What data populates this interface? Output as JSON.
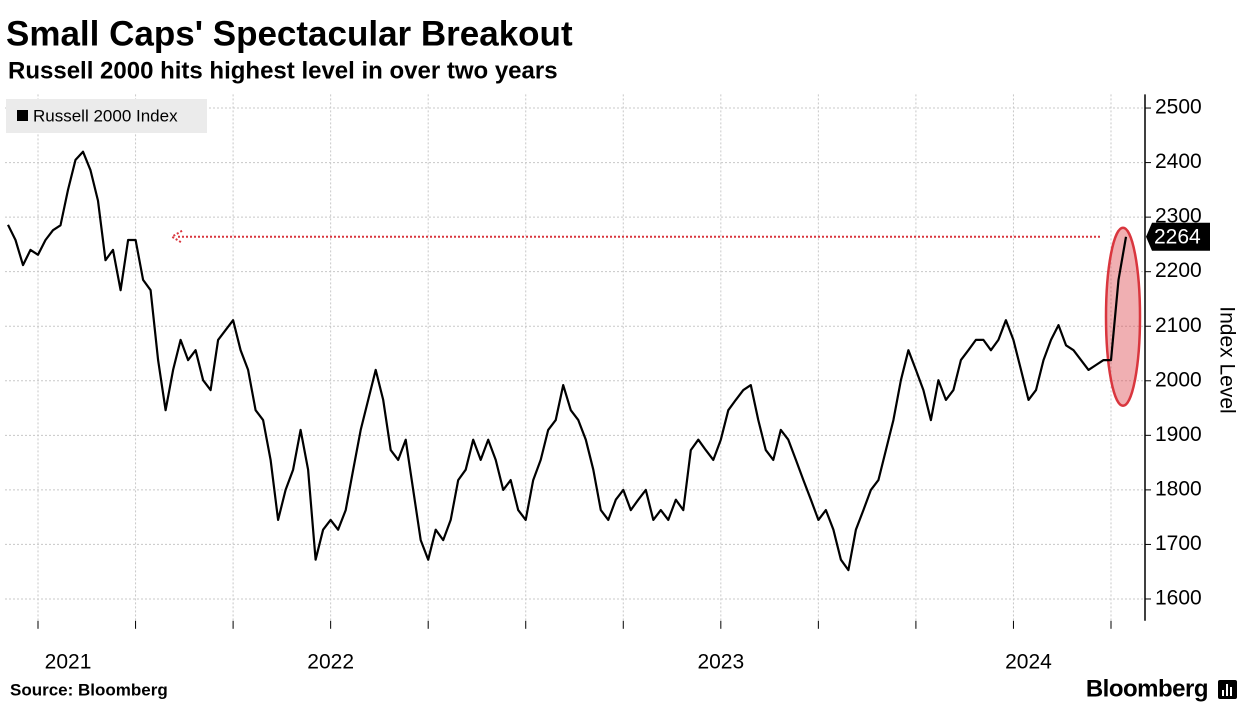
{
  "chart_data": {
    "type": "line",
    "title": "Small Caps' Spectacular Breakout",
    "subtitle": "Russell 2000 hits highest level in over two years",
    "y_axis_label": "Index Level",
    "source": "Source: Bloomberg",
    "brand": "Bloomberg",
    "categories": [
      null,
      null,
      null,
      null,
      null,
      null,
      null,
      null,
      "2021",
      null,
      null,
      null,
      null,
      null,
      null,
      null,
      null,
      null,
      null,
      null,
      null,
      null,
      null,
      null,
      null,
      null,
      null,
      null,
      null,
      null,
      null,
      null,
      null,
      null,
      null,
      null,
      null,
      null,
      null,
      null,
      null,
      null,
      null,
      "2022",
      null,
      null,
      null,
      null,
      null,
      null,
      null,
      null,
      null,
      null,
      null,
      null,
      null,
      null,
      null,
      null,
      null,
      null,
      null,
      null,
      null,
      null,
      null,
      null,
      null,
      null,
      null,
      null,
      null,
      null,
      null,
      null,
      null,
      null,
      null,
      null,
      null,
      null,
      null,
      null,
      null,
      null,
      null,
      null,
      null,
      null,
      null,
      null,
      null,
      null,
      null,
      "2023",
      null,
      null,
      null,
      null,
      null,
      null,
      null,
      null,
      null,
      null,
      null,
      null,
      null,
      null,
      null,
      null,
      null,
      null,
      null,
      null,
      null,
      null,
      null,
      null,
      null,
      null,
      null,
      null,
      null,
      null,
      null,
      null,
      null,
      null,
      null,
      null,
      null,
      null,
      null,
      null,
      "2024",
      null,
      null,
      null,
      null,
      null,
      null,
      null,
      null,
      null,
      null,
      null,
      null,
      null
    ],
    "series": [
      {
        "name": "Russell 2000 Index",
        "color": "#000000",
        "values": [
          2286,
          2258,
          2212,
          2240,
          2231,
          2258,
          2276,
          2285,
          2350,
          2405,
          2420,
          2386,
          2330,
          2221,
          2240,
          2166,
          2258,
          2258,
          2185,
          2166,
          2038,
          1946,
          2020,
          2075,
          2038,
          2056,
          2001,
          1983,
          2075,
          2093,
          2111,
          2056,
          2020,
          1946,
          1928,
          1855,
          1745,
          1800,
          1837,
          1910,
          1837,
          1672,
          1727,
          1745,
          1727,
          1763,
          1837,
          1910,
          1965,
          2020,
          1965,
          1873,
          1855,
          1892,
          1800,
          1708,
          1672,
          1727,
          1708,
          1745,
          1818,
          1837,
          1892,
          1855,
          1892,
          1855,
          1800,
          1818,
          1763,
          1745,
          1818,
          1855,
          1910,
          1928,
          1992,
          1946,
          1928,
          1892,
          1837,
          1763,
          1745,
          1782,
          1800,
          1763,
          1782,
          1800,
          1745,
          1763,
          1745,
          1782,
          1763,
          1873,
          1892,
          1873,
          1855,
          1892,
          1946,
          1965,
          1983,
          1992,
          1928,
          1873,
          1855,
          1910,
          1892,
          1855,
          1818,
          1782,
          1745,
          1763,
          1727,
          1672,
          1653,
          1727,
          1763,
          1800,
          1818,
          1873,
          1928,
          2001,
          2056,
          2020,
          1983,
          1928,
          2001,
          1965,
          1983,
          2038,
          2056,
          2075,
          2075,
          2056,
          2075,
          2111,
          2075,
          2020,
          1965,
          1983,
          2038,
          2075,
          2102,
          2065,
          2056,
          2038,
          2020,
          2029,
          2038,
          2038,
          2185,
          2264
        ]
      }
    ],
    "ylim": [
      1560,
      2525
    ],
    "yticks": [
      1600,
      1700,
      1800,
      1900,
      2000,
      2100,
      2200,
      2300,
      2400,
      2500
    ],
    "grid": true,
    "legend": "top-left",
    "highlight_color": "#d9363e"
  }
}
